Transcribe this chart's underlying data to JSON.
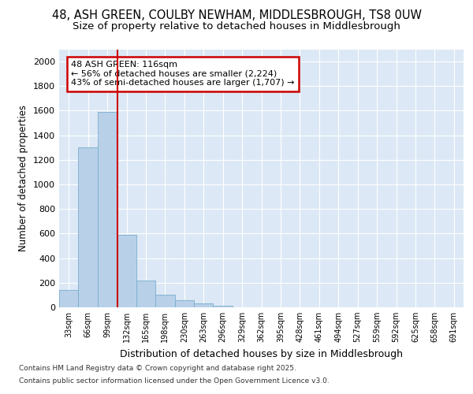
{
  "title1": "48, ASH GREEN, COULBY NEWHAM, MIDDLESBROUGH, TS8 0UW",
  "title2": "Size of property relative to detached houses in Middlesbrough",
  "xlabel": "Distribution of detached houses by size in Middlesbrough",
  "ylabel": "Number of detached properties",
  "footer1": "Contains HM Land Registry data © Crown copyright and database right 2025.",
  "footer2": "Contains public sector information licensed under the Open Government Licence v3.0.",
  "bin_labels": [
    "33sqm",
    "66sqm",
    "99sqm",
    "132sqm",
    "165sqm",
    "198sqm",
    "230sqm",
    "263sqm",
    "296sqm",
    "329sqm",
    "362sqm",
    "395sqm",
    "428sqm",
    "461sqm",
    "494sqm",
    "527sqm",
    "559sqm",
    "592sqm",
    "625sqm",
    "658sqm",
    "691sqm"
  ],
  "bar_heights": [
    140,
    1300,
    1590,
    590,
    220,
    100,
    55,
    30,
    10,
    0,
    0,
    0,
    0,
    0,
    0,
    0,
    0,
    0,
    0,
    0,
    0
  ],
  "bar_color": "#b8d0e8",
  "bar_edge_color": "#7aaed0",
  "vline_color": "#cc0000",
  "annotation_title": "48 ASH GREEN: 116sqm",
  "annotation_line2": "← 56% of detached houses are smaller (2,224)",
  "annotation_line3": "43% of semi-detached houses are larger (1,707) →",
  "annotation_box_color": "#cc0000",
  "ylim": [
    0,
    2100
  ],
  "yticks": [
    0,
    200,
    400,
    600,
    800,
    1000,
    1200,
    1400,
    1600,
    1800,
    2000
  ],
  "plot_bg_color": "#dce8f5",
  "fig_bg_color": "#ffffff",
  "title1_fontsize": 10.5,
  "title2_fontsize": 9.5,
  "xlabel_fontsize": 9,
  "ylabel_fontsize": 8.5,
  "annotation_fontsize": 8,
  "footer_fontsize": 6.5
}
